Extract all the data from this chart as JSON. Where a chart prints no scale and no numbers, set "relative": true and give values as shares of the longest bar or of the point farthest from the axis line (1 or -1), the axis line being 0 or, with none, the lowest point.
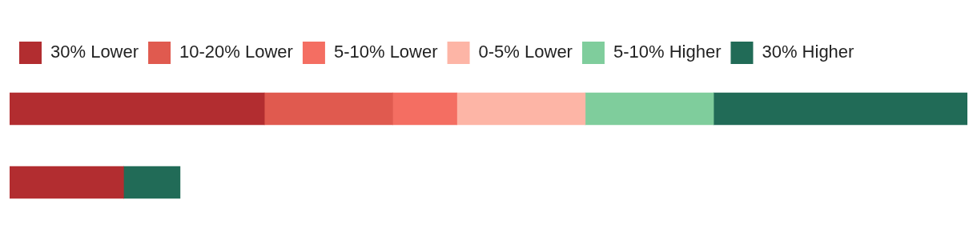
{
  "chart_data": {
    "type": "bar",
    "orientation": "horizontal",
    "stacked": true,
    "relative": true,
    "categories": [
      null,
      null
    ],
    "legend": "top left",
    "series": [
      {
        "name": "30% Lower",
        "color": "#b22d30",
        "values": [
          0.266,
          0.119
        ]
      },
      {
        "name": "10-20% Lower",
        "color": "#e05a4f",
        "values": [
          0.134,
          null
        ]
      },
      {
        "name": "5-10% Lower",
        "color": "#f46e62",
        "values": [
          0.067,
          null
        ]
      },
      {
        "name": "0-5% Lower",
        "color": "#fdb5a6",
        "values": [
          0.134,
          null
        ]
      },
      {
        "name": "5-10% Higher",
        "color": "#7fcd9c",
        "values": [
          0.134,
          null
        ]
      },
      {
        "name": "30% Higher",
        "color": "#216b57",
        "values": [
          0.265,
          0.059
        ]
      }
    ]
  }
}
